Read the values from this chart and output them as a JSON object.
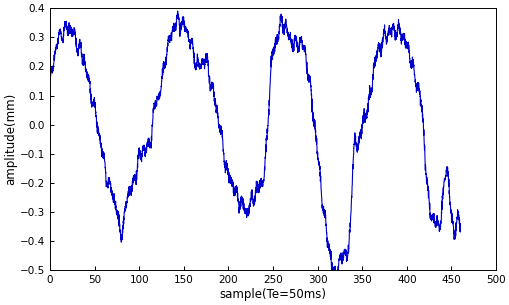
{
  "xlabel": "sample(Te=50ms)",
  "ylabel": "amplitude(mm)",
  "xlim": [
    0,
    500
  ],
  "ylim": [
    -0.5,
    0.4
  ],
  "xticks": [
    0,
    50,
    100,
    150,
    200,
    250,
    300,
    350,
    400,
    450,
    500
  ],
  "yticks": [
    -0.5,
    -0.4,
    -0.3,
    -0.2,
    -0.1,
    0,
    0.1,
    0.2,
    0.3,
    0.4
  ],
  "line_color": "#0000CC",
  "line_width": 0.8,
  "background_color": "#ffffff",
  "figsize": [
    5.1,
    3.05
  ],
  "dpi": 100,
  "control_x": [
    0,
    3,
    8,
    15,
    22,
    30,
    38,
    45,
    52,
    57,
    62,
    65,
    68,
    72,
    75,
    80,
    87,
    93,
    97,
    102,
    107,
    112,
    118,
    122,
    128,
    133,
    138,
    142,
    148,
    152,
    158,
    162,
    168,
    175,
    180,
    185,
    190,
    198,
    204,
    210,
    215,
    220,
    225,
    228,
    232,
    237,
    242,
    248,
    253,
    257,
    262,
    268,
    275,
    282,
    287,
    292,
    296,
    300,
    303,
    305,
    308,
    312,
    315,
    320,
    325,
    330,
    335,
    340,
    345,
    352,
    358,
    362,
    367,
    372,
    377,
    383,
    390,
    396,
    400,
    405,
    410,
    415,
    420,
    425,
    430,
    435,
    440,
    445,
    450,
    455,
    460
  ],
  "control_y": [
    0.15,
    0.2,
    0.28,
    0.32,
    0.33,
    0.28,
    0.22,
    0.12,
    0.02,
    -0.07,
    -0.15,
    -0.2,
    -0.22,
    -0.26,
    -0.3,
    -0.37,
    -0.24,
    -0.21,
    -0.15,
    -0.1,
    -0.08,
    -0.06,
    0.07,
    0.1,
    0.2,
    0.28,
    0.33,
    0.35,
    0.35,
    0.33,
    0.28,
    0.23,
    0.2,
    0.22,
    0.15,
    0.08,
    0.0,
    -0.15,
    -0.2,
    -0.25,
    -0.27,
    -0.3,
    -0.27,
    -0.25,
    -0.22,
    -0.2,
    -0.1,
    0.2,
    0.28,
    0.33,
    0.35,
    0.3,
    0.28,
    0.28,
    0.23,
    0.12,
    0.02,
    -0.1,
    -0.18,
    -0.25,
    -0.33,
    -0.4,
    -0.47,
    -0.5,
    -0.48,
    -0.44,
    -0.42,
    -0.12,
    -0.06,
    0.02,
    0.08,
    0.17,
    0.25,
    0.28,
    0.31,
    0.32,
    0.32,
    0.3,
    0.27,
    0.22,
    0.15,
    0.1,
    -0.08,
    -0.28,
    -0.32,
    -0.35,
    -0.27,
    -0.15,
    -0.32,
    -0.35,
    -0.35
  ]
}
